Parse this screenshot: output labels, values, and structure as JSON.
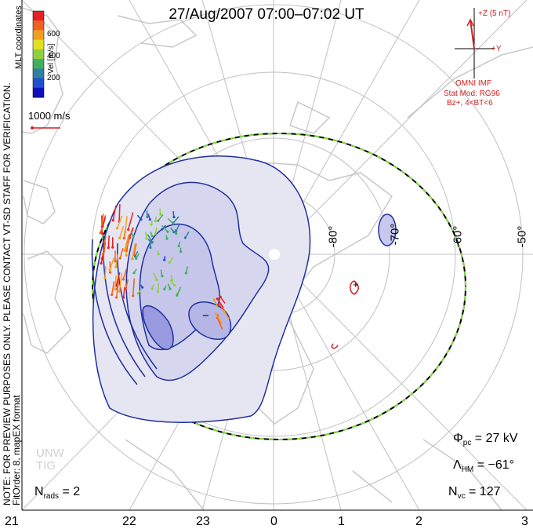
{
  "title": "27/Aug/2007 07:00–07:02 UT",
  "colorbar": {
    "label": "Vel [m/s]",
    "ticks": [
      "600",
      "400",
      "200"
    ],
    "colors": [
      "#e82020",
      "#f06020",
      "#f0a020",
      "#e0e020",
      "#90d040",
      "#40b060",
      "#3080a0",
      "#2050d0",
      "#1010c0"
    ]
  },
  "mlt_label": "MLT coordinates",
  "preview_note": "NOTE: FOR PREVIEW PURPOSES ONLY. PLEASE CONTACT VT-SD STAFF FOR VERIFICATION.",
  "fit_note": "FitOrder: 8, mapEX format",
  "reference_vector": "1000 m/s",
  "imf": {
    "z_label": "+Z (5 nT)",
    "y_label": "+Y",
    "source": "OMNI IMF",
    "model": "Stat Mod: RG96",
    "condition": "Bz+, 4<BT<6"
  },
  "latitude_labels": [
    "-80°",
    "-70°",
    "-60°",
    "-50°"
  ],
  "contour_labels": {
    "plus": "+",
    "minus": "−",
    "sign_char": "−"
  },
  "stats": {
    "phi_pc": {
      "label": "Φ",
      "sub": "pc",
      "value": "= 27 kV"
    },
    "lambda_hm": {
      "label": "Λ",
      "sub": "HM",
      "value": "= −61°"
    },
    "n_vc": {
      "label": "N",
      "sub": "vc",
      "value": "= 127"
    },
    "n_rads": {
      "label": "N",
      "sub": "rads",
      "value": "= 2"
    }
  },
  "watermark": [
    "UNW",
    "TIG"
  ],
  "mlt_ticks": [
    "21",
    "22",
    "23",
    "0",
    "1",
    "2",
    "3"
  ]
}
